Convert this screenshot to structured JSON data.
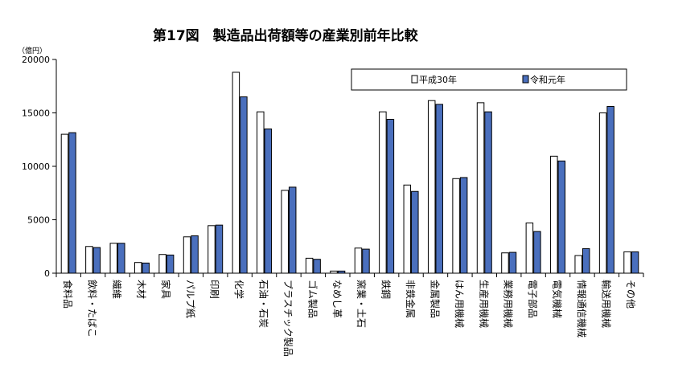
{
  "chart_data": {
    "type": "bar",
    "title": "第17図　製造品出荷額等の産業別前年比較",
    "unit_label": "（億円）",
    "ylim": [
      0,
      20000
    ],
    "yticks": [
      0,
      5000,
      10000,
      15000,
      20000
    ],
    "grid": false,
    "legend_position": "top-right",
    "colors": {
      "series1": "#ffffff",
      "series2": "#4a6fbd",
      "outline": "#000000"
    },
    "categories": [
      "食料品",
      "飲料・たばこ",
      "繊維",
      "木材",
      "家具",
      "パルプ紙",
      "印刷",
      "化学",
      "石油・石炭",
      "プラスチック製品",
      "ゴム製品",
      "なめし革",
      "窯業・土石",
      "鉄鋼",
      "非鉄金属",
      "金属製品",
      "はん用機械",
      "生産用機械",
      "業務用機械",
      "電子部品",
      "電気機械",
      "情報通信機械",
      "輸送用機械",
      "その他"
    ],
    "series": [
      {
        "name": "平成30年",
        "values": [
          13000,
          2500,
          2800,
          1000,
          1750,
          3400,
          4450,
          18800,
          15100,
          7750,
          1400,
          200,
          2350,
          15100,
          8250,
          16150,
          8850,
          15950,
          1900,
          4700,
          10950,
          1650,
          15000,
          2000
        ]
      },
      {
        "name": "令和元年",
        "values": [
          13150,
          2400,
          2800,
          950,
          1700,
          3500,
          4500,
          16500,
          13500,
          8050,
          1300,
          200,
          2250,
          14400,
          7650,
          15800,
          8950,
          15100,
          1950,
          3900,
          10500,
          2300,
          15600,
          2000
        ]
      }
    ]
  }
}
